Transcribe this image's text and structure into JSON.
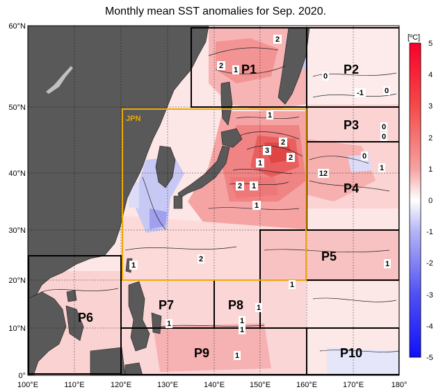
{
  "title": "Monthly mean SST anomalies for Sep. 2020.",
  "colorbar": {
    "unit": "[ºC]",
    "ticks": [
      "5",
      "4",
      "3",
      "2",
      "1",
      "0",
      "-1",
      "-2",
      "-3",
      "-4",
      "-5"
    ]
  },
  "axes": {
    "lon_labels": [
      "100°E",
      "110°E",
      "120°E",
      "130°E",
      "140°E",
      "150°E",
      "160°E",
      "170°E",
      "180°"
    ],
    "lat_labels": [
      "60°N",
      "50°N",
      "40°N",
      "30°N",
      "20°N",
      "10°N",
      "0°"
    ]
  },
  "regions": [
    {
      "id": "P1",
      "label": "P1"
    },
    {
      "id": "P2",
      "label": "P2"
    },
    {
      "id": "P3",
      "label": "P3"
    },
    {
      "id": "P4",
      "label": "P4"
    },
    {
      "id": "P5",
      "label": "P5"
    },
    {
      "id": "P6",
      "label": "P6"
    },
    {
      "id": "P7",
      "label": "P7"
    },
    {
      "id": "P8",
      "label": "P8"
    },
    {
      "id": "P9",
      "label": "P9"
    },
    {
      "id": "P10",
      "label": "P10"
    },
    {
      "id": "JPN",
      "label": "JPN"
    }
  ],
  "contour_labels": [
    "2",
    "2",
    "1",
    "0",
    "-1",
    "0",
    "1",
    "0",
    "0",
    "2",
    "3",
    "2",
    "1",
    "0",
    "1",
    "12",
    "1",
    "2",
    "1",
    "2",
    "1",
    "1",
    "1",
    "1",
    "1",
    "1",
    "1",
    "1"
  ],
  "colors": {
    "land": "#595959",
    "jpn_box": "#f0a800",
    "warm": "#e8362f",
    "cold": "#3c3cf0"
  }
}
